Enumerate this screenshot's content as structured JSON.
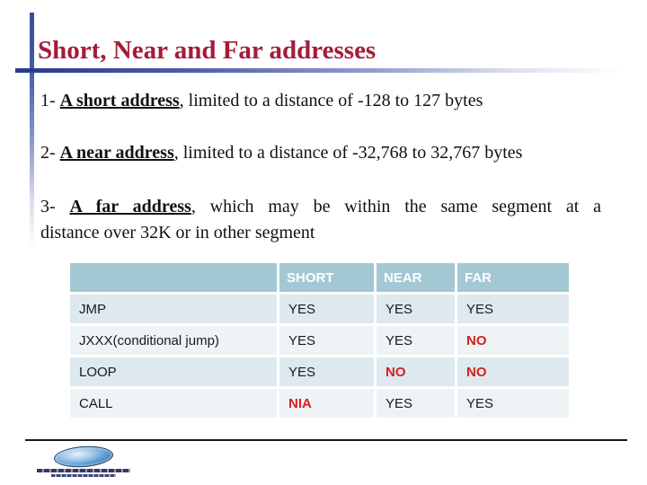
{
  "palette": {
    "title_color": "#A31C38",
    "accent_blue": "#27398F",
    "table_header_bg": "#A3C8D3",
    "table_row_odd_bg": "#DDE9EE",
    "table_row_even_bg": "#EEF4F6",
    "negative_red": "#D91D1D"
  },
  "title": "Short, Near and Far addresses",
  "paragraphs": {
    "p1": {
      "prefix": "1- ",
      "emph": "A short address",
      "rest": ", limited to a distance of -128 to 127 bytes"
    },
    "p2": {
      "prefix": "2- ",
      "emph": "A near address",
      "rest": ", limited to a distance of -32,768 to 32,767 bytes"
    },
    "p3": {
      "prefix": "3- ",
      "emph": "A far address",
      "rest_line1": ", which may be within the same segment at a",
      "line2": "distance over 32K or in other segment"
    }
  },
  "table": {
    "columns": [
      "",
      "SHORT",
      "NEAR",
      "FAR"
    ],
    "rows": [
      {
        "label": "JMP",
        "cells": [
          {
            "text": "YES"
          },
          {
            "text": "YES"
          },
          {
            "text": "YES"
          }
        ]
      },
      {
        "label": "JXXX(conditional jump)",
        "cells": [
          {
            "text": "YES"
          },
          {
            "text": "YES"
          },
          {
            "text": "NO",
            "state": "red"
          }
        ]
      },
      {
        "label": "LOOP",
        "cells": [
          {
            "text": "YES"
          },
          {
            "text": "NO",
            "state": "red"
          },
          {
            "text": "NO",
            "state": "red"
          }
        ]
      },
      {
        "label": "CALL",
        "cells": [
          {
            "text": "NIA",
            "state": "red"
          },
          {
            "text": "YES"
          },
          {
            "text": "YES"
          }
        ]
      }
    ]
  }
}
